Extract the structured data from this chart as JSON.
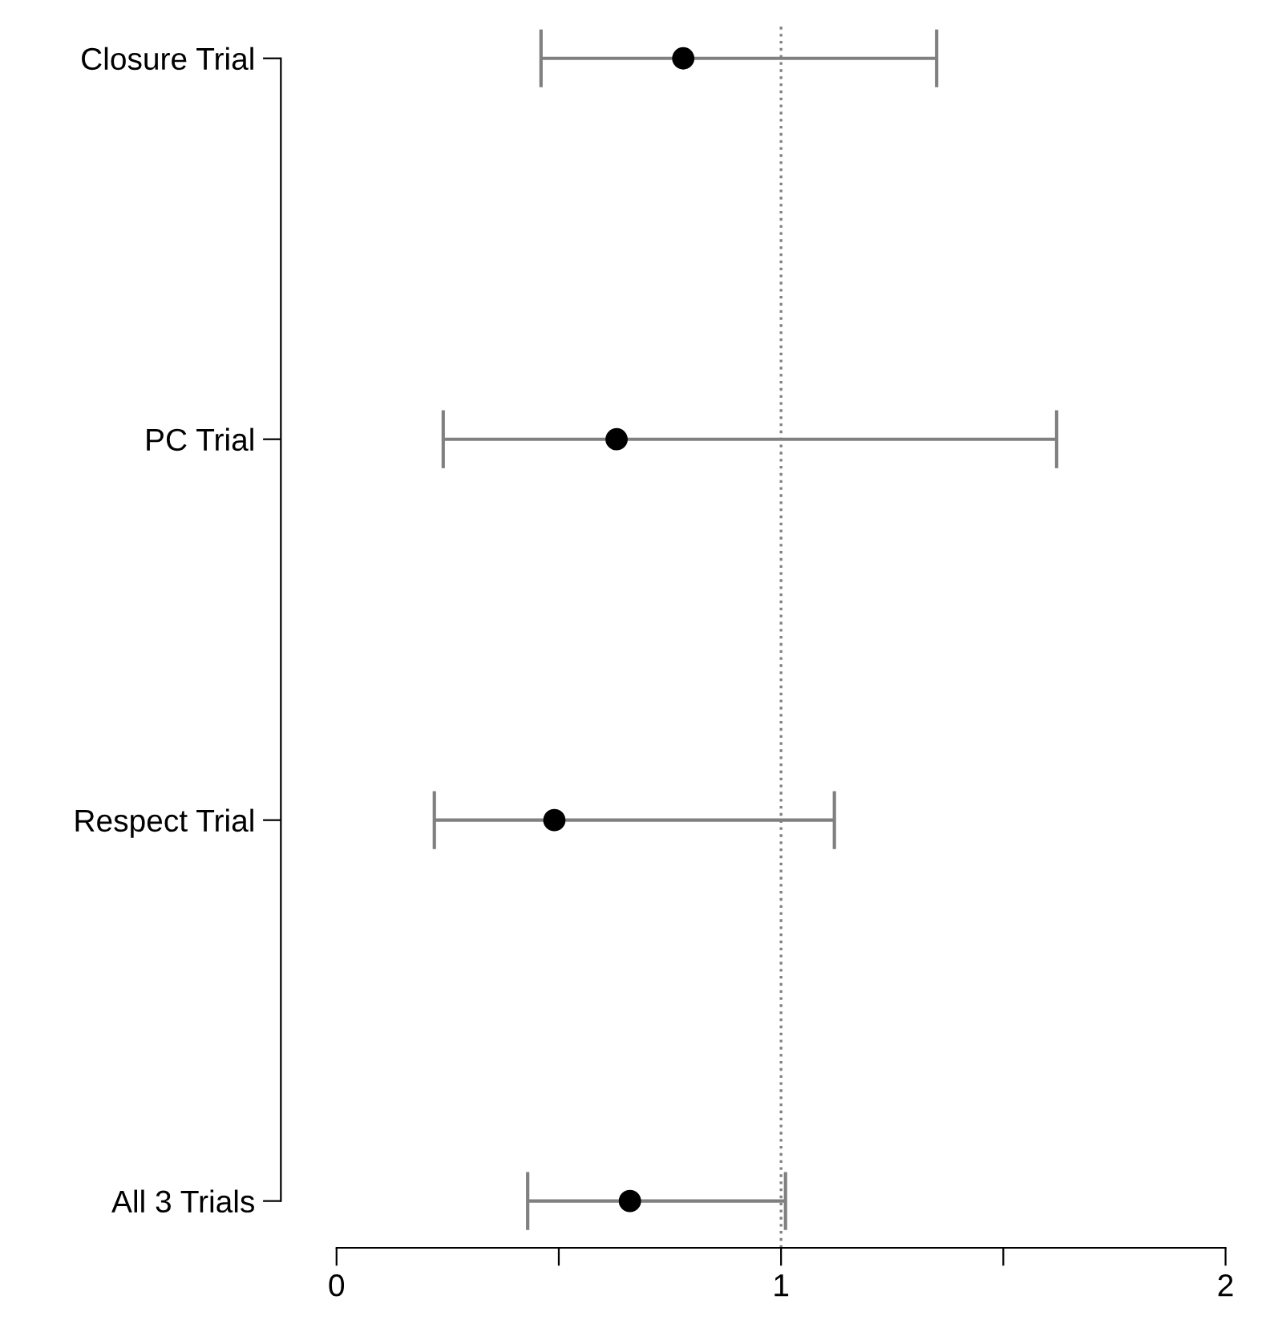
{
  "chart_data": {
    "type": "scatter",
    "orientation": "horizontal",
    "categories": [
      "Closure Trial",
      "PC Trial",
      "Respect Trial",
      "All 3 Trials"
    ],
    "values": [
      0.78,
      0.63,
      0.49,
      0.66
    ],
    "errors": [
      [
        0.46,
        1.35
      ],
      [
        0.24,
        1.62
      ],
      [
        0.22,
        1.12
      ],
      [
        0.43,
        1.01
      ]
    ],
    "color": "#000000",
    "marker": "circle",
    "xlim": [
      0,
      2
    ],
    "xticks": [
      0,
      {
        "value": 0.5,
        "label": null
      },
      1,
      {
        "value": 1.5,
        "label": null
      },
      2
    ],
    "ref_lines": [
      {
        "axis": "x",
        "value": 1,
        "color": "#808080",
        "line_style": "dotted"
      }
    ],
    "grid": false,
    "legend": false
  }
}
